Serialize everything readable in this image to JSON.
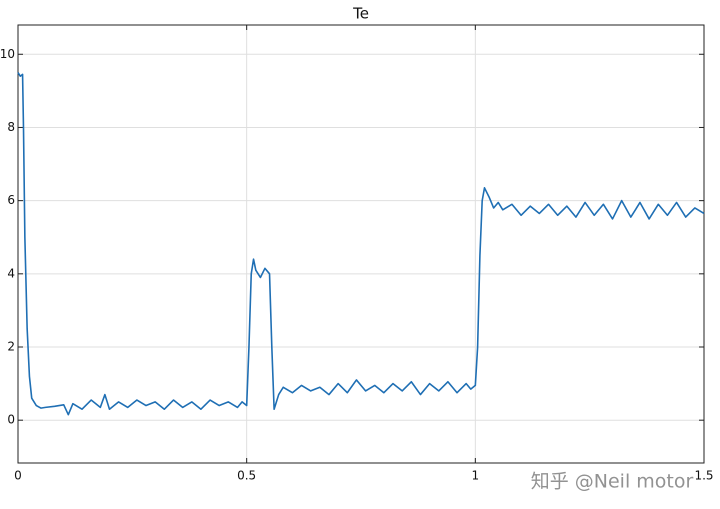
{
  "chart_data": {
    "type": "line",
    "title": "Te",
    "x": [
      0,
      0.005,
      0.01,
      0.012,
      0.015,
      0.02,
      0.025,
      0.03,
      0.04,
      0.05,
      0.06,
      0.08,
      0.1,
      0.11,
      0.12,
      0.14,
      0.16,
      0.18,
      0.19,
      0.2,
      0.22,
      0.24,
      0.26,
      0.28,
      0.3,
      0.32,
      0.34,
      0.36,
      0.38,
      0.4,
      0.42,
      0.44,
      0.46,
      0.48,
      0.49,
      0.5,
      0.505,
      0.51,
      0.515,
      0.52,
      0.53,
      0.54,
      0.55,
      0.555,
      0.56,
      0.57,
      0.58,
      0.6,
      0.62,
      0.64,
      0.66,
      0.68,
      0.7,
      0.72,
      0.74,
      0.76,
      0.78,
      0.8,
      0.82,
      0.84,
      0.86,
      0.88,
      0.9,
      0.92,
      0.94,
      0.96,
      0.98,
      0.99,
      1,
      1.005,
      1.01,
      1.015,
      1.02,
      1.03,
      1.04,
      1.05,
      1.06,
      1.08,
      1.1,
      1.12,
      1.14,
      1.16,
      1.18,
      1.2,
      1.22,
      1.24,
      1.26,
      1.28,
      1.3,
      1.32,
      1.34,
      1.36,
      1.38,
      1.4,
      1.42,
      1.44,
      1.46,
      1.48,
      1.5
    ],
    "series": [
      {
        "color": "#1f6fb4",
        "values": [
          9.5,
          9.4,
          9.45,
          8.0,
          5.0,
          2.5,
          1.2,
          0.6,
          0.4,
          0.33,
          0.35,
          0.38,
          0.42,
          0.15,
          0.45,
          0.3,
          0.55,
          0.35,
          0.7,
          0.3,
          0.5,
          0.35,
          0.55,
          0.4,
          0.5,
          0.3,
          0.55,
          0.35,
          0.5,
          0.3,
          0.55,
          0.4,
          0.5,
          0.35,
          0.5,
          0.4,
          2.0,
          4.0,
          4.4,
          4.1,
          3.9,
          4.15,
          4.0,
          2.0,
          0.3,
          0.7,
          0.9,
          0.75,
          0.95,
          0.8,
          0.9,
          0.7,
          1.0,
          0.75,
          1.1,
          0.8,
          0.95,
          0.75,
          1.0,
          0.8,
          1.05,
          0.7,
          1.0,
          0.8,
          1.05,
          0.75,
          1.0,
          0.85,
          0.95,
          2.0,
          4.5,
          6.0,
          6.35,
          6.1,
          5.8,
          5.95,
          5.75,
          5.9,
          5.6,
          5.85,
          5.65,
          5.9,
          5.6,
          5.85,
          5.55,
          5.95,
          5.6,
          5.9,
          5.5,
          6.0,
          5.55,
          5.95,
          5.5,
          5.9,
          5.6,
          5.95,
          5.55,
          5.8,
          5.65
        ]
      }
    ],
    "xlim": [
      0,
      1.5
    ],
    "xticks": [
      0,
      0.5,
      1,
      1.5
    ],
    "ylim": [
      -1.17,
      10.8
    ],
    "yticks": [
      0,
      2,
      4,
      6,
      8,
      10
    ],
    "grid": true,
    "watermark": "知乎 @Neil motor"
  }
}
